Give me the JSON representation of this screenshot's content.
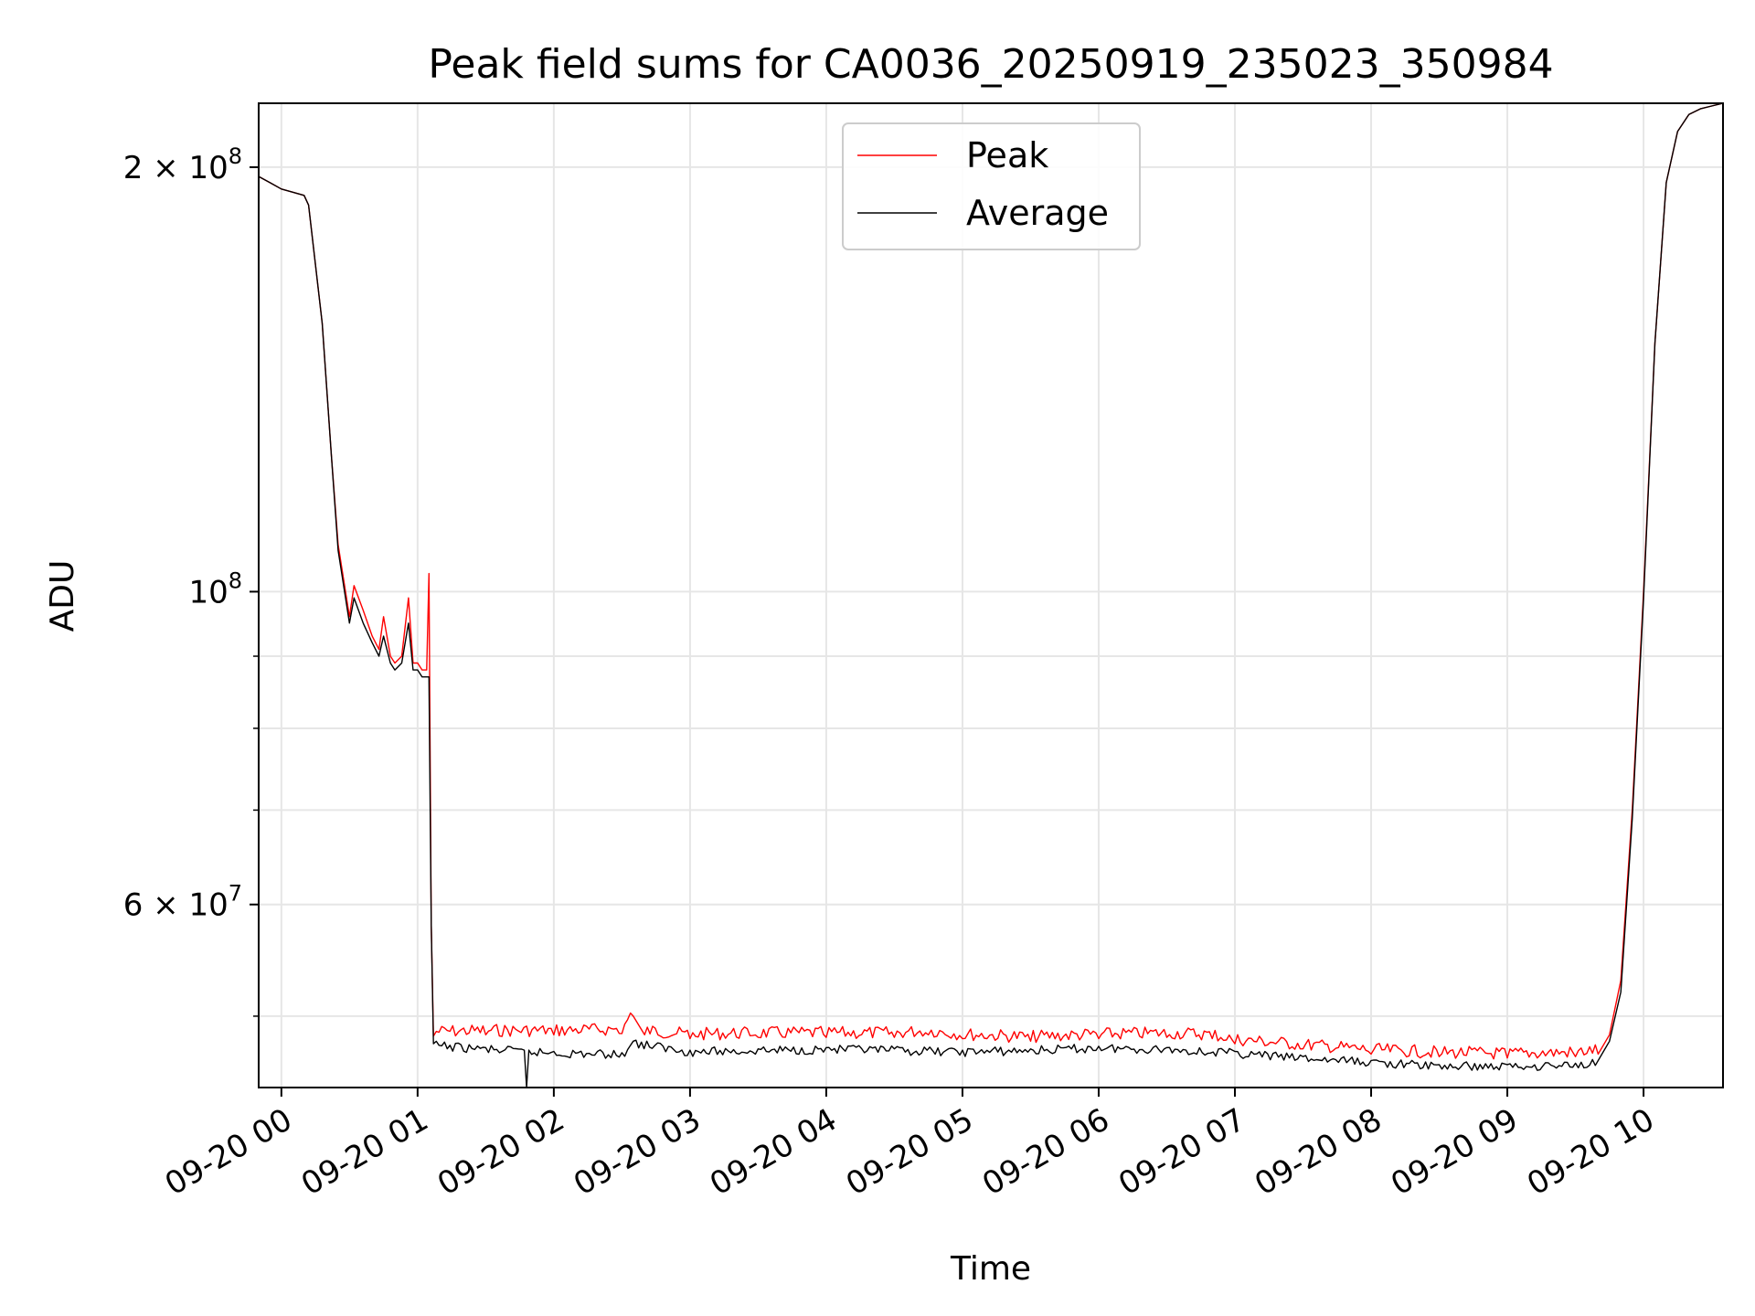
{
  "chart_data": {
    "type": "line",
    "title": "Peak field sums for CA0036_20250919_235023_350984",
    "xlabel": "Time",
    "ylabel": "ADU",
    "y_scale": "log",
    "ylim": [
      44500000,
      222000000
    ],
    "xlim": [
      "09-19 23:50",
      "09-20 10:35"
    ],
    "x_tick_labels": [
      "09-20 00",
      "09-20 01",
      "09-20 02",
      "09-20 03",
      "09-20 04",
      "09-20 05",
      "09-20 06",
      "09-20 07",
      "09-20 08",
      "09-20 09",
      "09-20 10"
    ],
    "y_tick_labels": [
      {
        "value": 200000000,
        "base": "2 × 10",
        "exp": "8"
      },
      {
        "value": 100000000,
        "base": "10",
        "exp": "8"
      },
      {
        "value": 60000000,
        "base": "6 × 10",
        "exp": "7"
      }
    ],
    "grid": true,
    "legend_position": "upper center",
    "series": [
      {
        "name": "Peak",
        "color": "#ff0000",
        "x": [
          "09-19 23:50",
          "09-19 23:55",
          "09-20 00:00",
          "09-20 00:05",
          "09-20 00:10",
          "09-20 00:12",
          "09-20 00:18",
          "09-20 00:22",
          "09-20 00:25",
          "09-20 00:27",
          "09-20 00:30",
          "09-20 00:32",
          "09-20 00:36",
          "09-20 00:40",
          "09-20 00:43",
          "09-20 00:45",
          "09-20 00:48",
          "09-20 00:50",
          "09-20 00:53",
          "09-20 00:56",
          "09-20 00:58",
          "09-20 01:00",
          "09-20 01:02",
          "09-20 01:04",
          "09-20 01:05",
          "09-20 01:06",
          "09-20 01:07",
          "09-20 01:30",
          "09-20 02:00",
          "09-20 02:30",
          "09-20 02:35",
          "09-20 02:40",
          "09-20 03:00",
          "09-20 03:30",
          "09-20 04:00",
          "09-20 04:30",
          "09-20 04:45",
          "09-20 05:00",
          "09-20 05:30",
          "09-20 06:00",
          "09-20 06:30",
          "09-20 06:50",
          "09-20 07:00",
          "09-20 07:30",
          "09-20 08:00",
          "09-20 08:30",
          "09-20 09:00",
          "09-20 09:30",
          "09-20 09:40",
          "09-20 09:45",
          "09-20 09:50",
          "09-20 09:55",
          "09-20 10:00",
          "09-20 10:05",
          "09-20 10:10",
          "09-20 10:15",
          "09-20 10:20",
          "09-20 10:25",
          "09-20 10:30",
          "09-20 10:35"
        ],
        "values": [
          197000000,
          195000000,
          193000000,
          192000000,
          191000000,
          188000000,
          155000000,
          125000000,
          108000000,
          103000000,
          96000000,
          101000000,
          97000000,
          93000000,
          91000000,
          96000000,
          90000000,
          89000000,
          90000000,
          99000000,
          89000000,
          89000000,
          88000000,
          88000000,
          103000000,
          58000000,
          48400000,
          48500000,
          48500000,
          48600000,
          50000000,
          48500000,
          48200000,
          48300000,
          48300000,
          48300000,
          48500000,
          48200000,
          48000000,
          48200000,
          48300000,
          48200000,
          47800000,
          47400000,
          47000000,
          46800000,
          46700000,
          46800000,
          47000000,
          48500000,
          53000000,
          70000000,
          100000000,
          150000000,
          195000000,
          212000000,
          218000000,
          220000000,
          221000000,
          222000000
        ]
      },
      {
        "name": "Average",
        "color": "#000000",
        "x": [
          "09-19 23:50",
          "09-19 23:55",
          "09-20 00:00",
          "09-20 00:05",
          "09-20 00:10",
          "09-20 00:12",
          "09-20 00:18",
          "09-20 00:22",
          "09-20 00:25",
          "09-20 00:27",
          "09-20 00:30",
          "09-20 00:32",
          "09-20 00:36",
          "09-20 00:40",
          "09-20 00:43",
          "09-20 00:45",
          "09-20 00:48",
          "09-20 00:50",
          "09-20 00:53",
          "09-20 00:56",
          "09-20 00:58",
          "09-20 01:00",
          "09-20 01:02",
          "09-20 01:04",
          "09-20 01:05",
          "09-20 01:06",
          "09-20 01:07",
          "09-20 01:30",
          "09-20 01:47",
          "09-20 01:48",
          "09-20 01:49",
          "09-20 02:00",
          "09-20 02:30",
          "09-20 02:35",
          "09-20 03:00",
          "09-20 03:30",
          "09-20 04:00",
          "09-20 04:30",
          "09-20 05:00",
          "09-20 05:30",
          "09-20 06:00",
          "09-20 06:30",
          "09-20 07:00",
          "09-20 07:30",
          "09-20 08:00",
          "09-20 08:30",
          "09-20 09:00",
          "09-20 09:30",
          "09-20 09:40",
          "09-20 09:45",
          "09-20 09:50",
          "09-20 09:55",
          "09-20 10:00",
          "09-20 10:05",
          "09-20 10:10",
          "09-20 10:15",
          "09-20 10:20",
          "09-20 10:25",
          "09-20 10:30",
          "09-20 10:35"
        ],
        "values": [
          197000000,
          195000000,
          193000000,
          192000000,
          191000000,
          188000000,
          155000000,
          125000000,
          107000000,
          102000000,
          95000000,
          99000000,
          95000000,
          92000000,
          90000000,
          93000000,
          89000000,
          88000000,
          89000000,
          95000000,
          88000000,
          88000000,
          87000000,
          87000000,
          87000000,
          58000000,
          47800000,
          47500000,
          47300000,
          44500000,
          47300000,
          47200000,
          47100000,
          48000000,
          47300000,
          47400000,
          47500000,
          47400000,
          47300000,
          47400000,
          47600000,
          47500000,
          47200000,
          46800000,
          46500000,
          46200000,
          46200000,
          46300000,
          46500000,
          48000000,
          52000000,
          69000000,
          99000000,
          150000000,
          195000000,
          212000000,
          218000000,
          220000000,
          221000000,
          222000000
        ]
      }
    ]
  }
}
